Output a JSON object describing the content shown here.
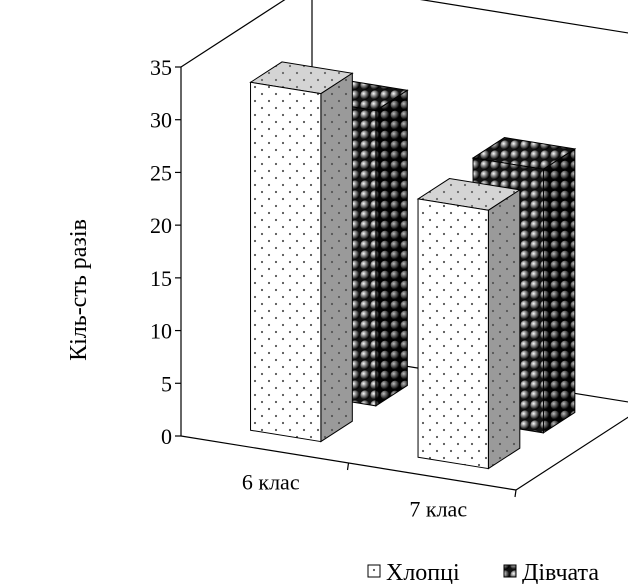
{
  "chart_data": {
    "type": "bar",
    "categories": [
      "6 клас",
      "7 клас"
    ],
    "series": [
      {
        "name": "Хлопці",
        "values": [
          33,
          24.5
        ]
      },
      {
        "name": "Дівчата",
        "values": [
          28,
          25
        ]
      }
    ],
    "title": "",
    "xlabel": "",
    "ylabel": "Кіль-сть разів",
    "ylim": [
      0,
      35
    ],
    "yticks": [
      0,
      5,
      10,
      15,
      20,
      25,
      30,
      35
    ],
    "grid": false,
    "legend_position": "bottom-right",
    "three_d": true
  },
  "legend": {
    "items": [
      {
        "label": "Хлопці",
        "pattern": "dots-light"
      },
      {
        "label": "Дівчата",
        "pattern": "spheres-dark"
      }
    ]
  }
}
